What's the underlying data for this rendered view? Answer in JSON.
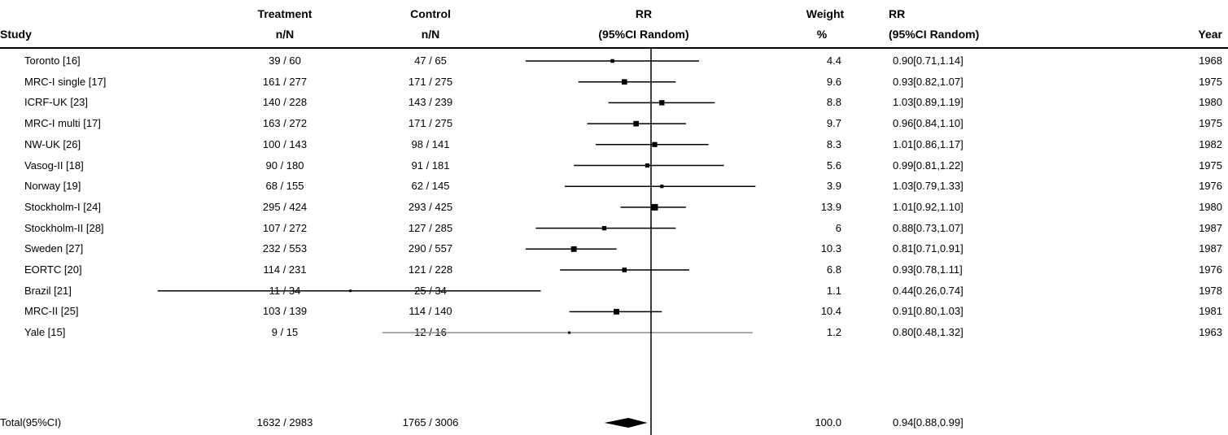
{
  "header": {
    "study": "Study",
    "treatment": [
      "Treatment",
      "n/N"
    ],
    "control": [
      "Control",
      "n/N"
    ],
    "rr_plot": [
      "RR",
      "(95%CI Random)"
    ],
    "weight": [
      "Weight",
      "%"
    ],
    "rr_text": [
      "RR",
      "(95%CI Random)"
    ],
    "year": "Year"
  },
  "chart_data": {
    "type": "forest",
    "x_axis": {
      "reference_line": 1.0,
      "scale": "log"
    },
    "rows": [
      {
        "study": "Toronto [16]",
        "treatment": "39 / 60",
        "control": "47 / 65",
        "weight": 4.4,
        "rr": 0.9,
        "lo": 0.71,
        "hi": 1.14,
        "rr_text": "0.90[0.71,1.14]",
        "year": "1968"
      },
      {
        "study": "MRC-I single [17]",
        "treatment": "161 / 277",
        "control": "171 / 275",
        "weight": 9.6,
        "rr": 0.93,
        "lo": 0.82,
        "hi": 1.07,
        "rr_text": "0.93[0.82,1.07]",
        "year": "1975"
      },
      {
        "study": "ICRF-UK [23]",
        "treatment": "140 / 228",
        "control": "143 / 239",
        "weight": 8.8,
        "rr": 1.03,
        "lo": 0.89,
        "hi": 1.19,
        "rr_text": "1.03[0.89,1.19]",
        "year": "1980"
      },
      {
        "study": "MRC-I multi [17]",
        "treatment": "163 / 272",
        "control": "171 / 275",
        "weight": 9.7,
        "rr": 0.96,
        "lo": 0.84,
        "hi": 1.1,
        "rr_text": "0.96[0.84,1.10]",
        "year": "1975"
      },
      {
        "study": "NW-UK [26]",
        "treatment": "100 / 143",
        "control": "98 / 141",
        "weight": 8.3,
        "rr": 1.01,
        "lo": 0.86,
        "hi": 1.17,
        "rr_text": "1.01[0.86,1.17]",
        "year": "1982"
      },
      {
        "study": "Vasog-II [18]",
        "treatment": "90 / 180",
        "control": "91 / 181",
        "weight": 5.6,
        "rr": 0.99,
        "lo": 0.81,
        "hi": 1.22,
        "rr_text": "0.99[0.81,1.22]",
        "year": "1975"
      },
      {
        "study": "Norway [19]",
        "treatment": "68 / 155",
        "control": "62 / 145",
        "weight": 3.9,
        "rr": 1.03,
        "lo": 0.79,
        "hi": 1.33,
        "rr_text": "1.03[0.79,1.33]",
        "year": "1976"
      },
      {
        "study": "Stockholm-I [24]",
        "treatment": "295 / 424",
        "control": "293 / 425",
        "weight": 13.9,
        "rr": 1.01,
        "lo": 0.92,
        "hi": 1.1,
        "rr_text": "1.01[0.92,1.10]",
        "year": "1980"
      },
      {
        "study": "Stockholm-II [28]",
        "treatment": "107 / 272",
        "control": "127 / 285",
        "weight": 6.0,
        "rr": 0.88,
        "lo": 0.73,
        "hi": 1.07,
        "rr_text": "0.88[0.73,1.07]",
        "year": "1987"
      },
      {
        "study": "Sweden [27]",
        "treatment": "232 / 553",
        "control": "290 / 557",
        "weight": 10.3,
        "rr": 0.81,
        "lo": 0.71,
        "hi": 0.91,
        "rr_text": "0.81[0.71,0.91]",
        "year": "1987"
      },
      {
        "study": "EORTC [20]",
        "treatment": "114 / 231",
        "control": "121 / 228",
        "weight": 6.8,
        "rr": 0.93,
        "lo": 0.78,
        "hi": 1.11,
        "rr_text": "0.93[0.78,1.11]",
        "year": "1976"
      },
      {
        "study": "Brazil [21]",
        "treatment": "11 / 34",
        "control": "25 / 34",
        "weight": 1.1,
        "rr": 0.44,
        "lo": 0.26,
        "hi": 0.74,
        "rr_text": "0.44[0.26,0.74]",
        "year": "1978"
      },
      {
        "study": "MRC-II [25]",
        "treatment": "103 / 139",
        "control": "114 / 140",
        "weight": 10.4,
        "rr": 0.91,
        "lo": 0.8,
        "hi": 1.03,
        "rr_text": "0.91[0.80,1.03]",
        "year": "1981"
      },
      {
        "study": "Yale [15]",
        "treatment": "9 / 15",
        "control": "12 / 16",
        "weight": 1.2,
        "rr": 0.8,
        "lo": 0.48,
        "hi": 1.32,
        "rr_text": "0.80[0.48,1.32]",
        "year": "1963",
        "ci_color": "#8c8c8c"
      }
    ],
    "total": {
      "study": "Total(95%CI)",
      "treatment": "1632 / 2983",
      "control": "1765 / 3006",
      "weight": "100.0",
      "rr": 0.94,
      "lo": 0.88,
      "hi": 0.99,
      "rr_text": "0.94[0.88,0.99]"
    }
  }
}
